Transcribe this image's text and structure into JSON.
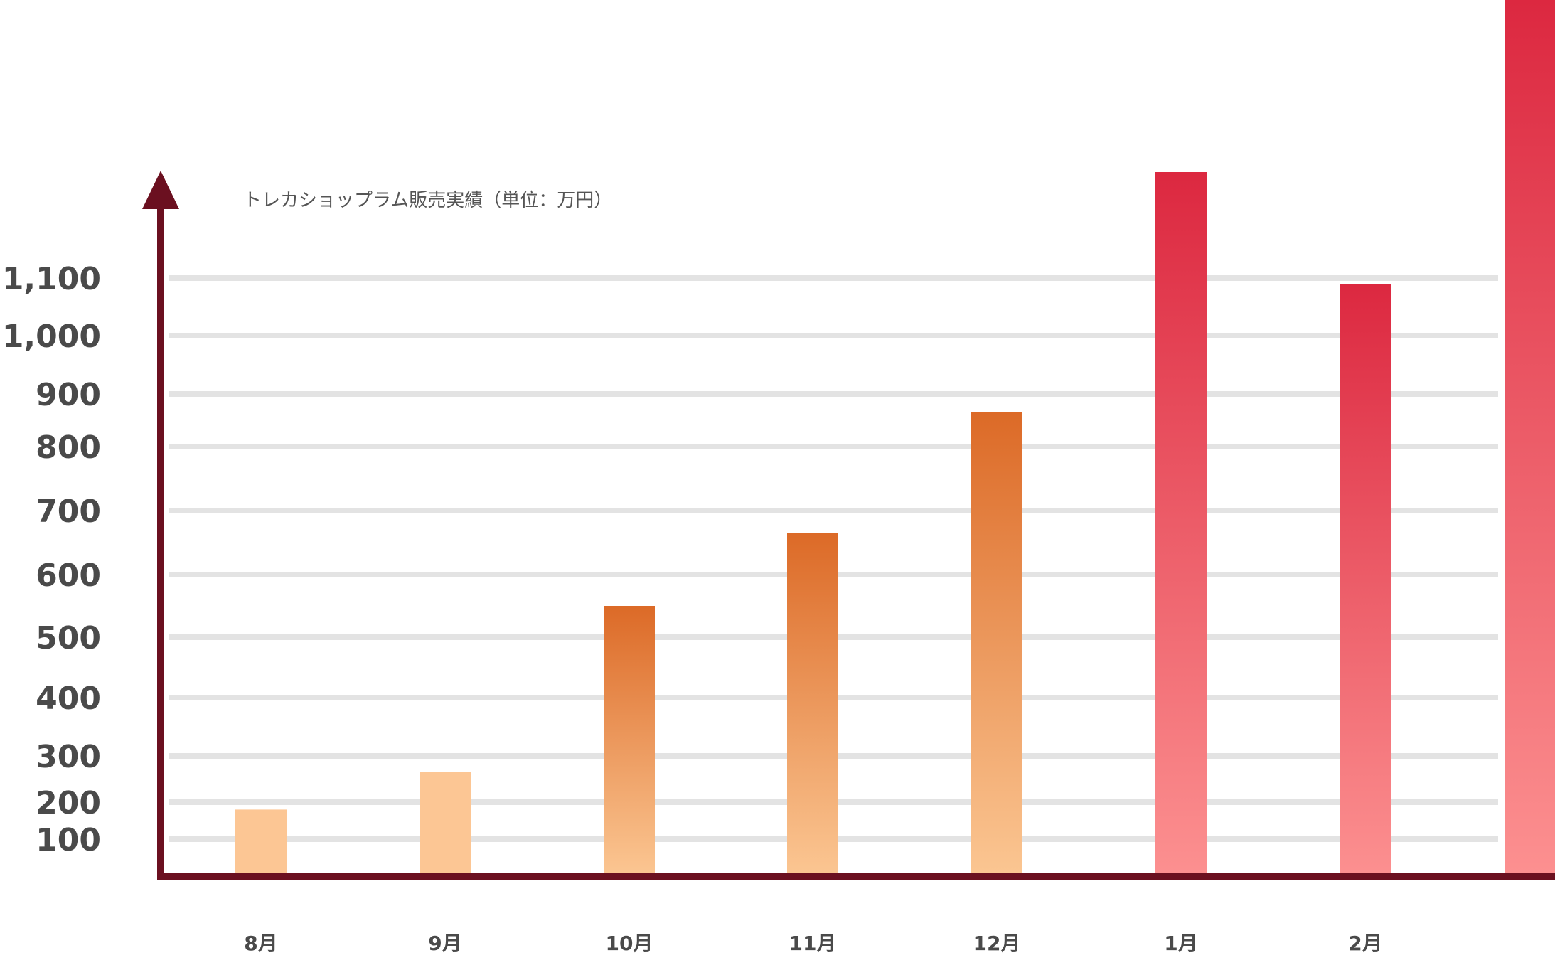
{
  "chart_data": {
    "type": "bar",
    "title": "トレカショップラム販売実績（単位：万円）",
    "categories": [
      "8月",
      "9月",
      "10月",
      "11月",
      "12月",
      "1月",
      "2月",
      ""
    ],
    "values": [
      180,
      265,
      550,
      665,
      865,
      1195,
      1090,
      1360
    ],
    "y_ticks": [
      100,
      200,
      300,
      400,
      500,
      600,
      700,
      800,
      900,
      1000,
      1100
    ],
    "y_tick_labels": [
      "100",
      "200",
      "300",
      "400",
      "500",
      "600",
      "700",
      "800",
      "900",
      "1,000",
      "1,100"
    ],
    "ylim": [
      0,
      1360
    ],
    "grid": true,
    "colors": {
      "axis": "#6b1020",
      "grid": "#e3e3e3",
      "light_orange": "#fcc694",
      "orange_top": "#dc6a27",
      "orange_bottom": "#fbc692",
      "red_top": "#dc2840",
      "red_bottom": "#fc9090",
      "tick_text": "#4a4a4a"
    }
  }
}
